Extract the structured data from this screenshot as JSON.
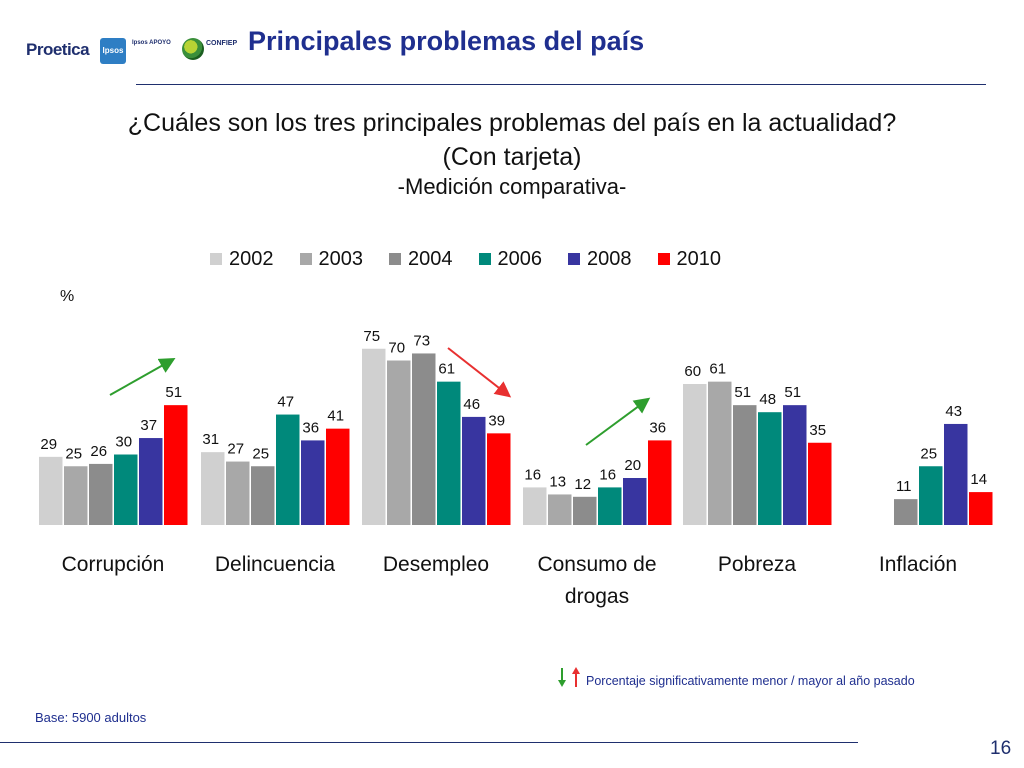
{
  "header": {
    "title": "Principales problemas del país",
    "logos": {
      "proetica": "Proetica",
      "ipsos": "Ipsos",
      "ipsos_sub": "Ipsos APOYO",
      "confiep": "CONFIEP"
    }
  },
  "question": {
    "line1": "¿Cuáles son los tres principales problemas del país en la actualidad?",
    "line2": "(Con tarjeta)",
    "subtitle": "-Medición comparativa-"
  },
  "chart_data": {
    "type": "bar",
    "unit": "%",
    "categories": [
      "Corrupción",
      "Delincuencia",
      "Desempleo",
      "Consumo de drogas",
      "Pobreza",
      "Inflación"
    ],
    "category_lines": [
      [
        "Corrupción"
      ],
      [
        "Delincuencia"
      ],
      [
        "Desempleo"
      ],
      [
        "Consumo de",
        "drogas"
      ],
      [
        "Pobreza"
      ],
      [
        "Inflación"
      ]
    ],
    "series": [
      {
        "name": "2002",
        "color": "#d0d0d0",
        "values": [
          29,
          31,
          75,
          16,
          60,
          null
        ]
      },
      {
        "name": "2003",
        "color": "#a8a8a8",
        "values": [
          25,
          27,
          70,
          13,
          61,
          null
        ]
      },
      {
        "name": "2004",
        "color": "#8c8c8c",
        "values": [
          26,
          25,
          73,
          12,
          51,
          11
        ]
      },
      {
        "name": "2006",
        "color": "#00897b",
        "values": [
          30,
          47,
          61,
          16,
          48,
          25
        ]
      },
      {
        "name": "2008",
        "color": "#3835a0",
        "values": [
          37,
          36,
          46,
          20,
          51,
          43
        ]
      },
      {
        "name": "2010",
        "color": "#ff0000",
        "values": [
          51,
          41,
          39,
          36,
          35,
          14
        ]
      }
    ],
    "trend_arrows": [
      {
        "category": "Corrupción",
        "direction": "up",
        "color": "#2e9e2e"
      },
      {
        "category": "Desempleo",
        "direction": "down",
        "color": "#e83030"
      },
      {
        "category": "Consumo de drogas",
        "direction": "up",
        "color": "#2e9e2e"
      }
    ],
    "ylim": [
      0,
      80
    ],
    "legend_position": "top"
  },
  "note": "Porcentaje significativamente menor / mayor al año pasado",
  "base": "Base: 5900 adultos",
  "page_number": "16"
}
